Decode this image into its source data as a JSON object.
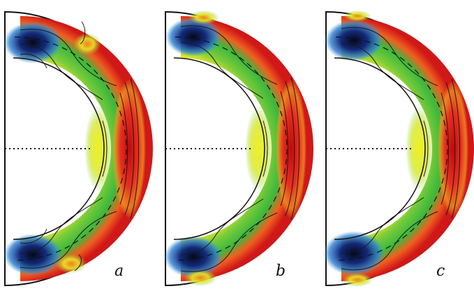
{
  "panels": [
    {
      "letter": "a"
    },
    {
      "letter": "b"
    },
    {
      "letter": "c"
    }
  ],
  "colormap": {
    "stops": [
      "#0a0f2e",
      "#1a3fa8",
      "#3fa0dc",
      "#7cc8a0",
      "#3cb83c",
      "#8fd23a",
      "#e8e828",
      "#f0a020",
      "#e83020",
      "#b01010"
    ]
  },
  "colors": {
    "outline": "#111111",
    "contour": "#1a1a1a",
    "tangent_cylinder": "#111111",
    "equator": "#111111"
  }
}
